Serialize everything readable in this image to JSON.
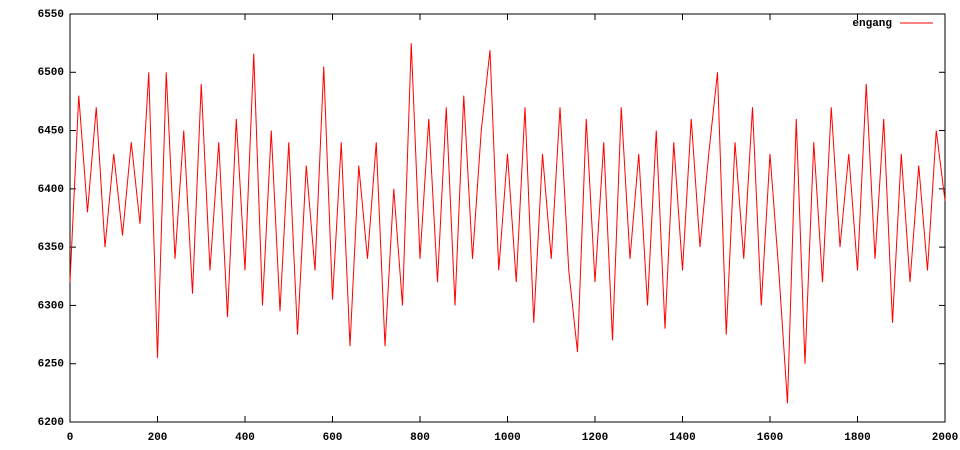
{
  "chart_data": {
    "type": "line",
    "x": [
      0,
      20,
      40,
      60,
      80,
      100,
      120,
      140,
      160,
      180,
      200,
      220,
      240,
      260,
      280,
      300,
      320,
      340,
      360,
      380,
      400,
      420,
      440,
      460,
      480,
      500,
      520,
      540,
      560,
      580,
      600,
      620,
      640,
      660,
      680,
      700,
      720,
      740,
      760,
      780,
      800,
      820,
      840,
      860,
      880,
      900,
      920,
      940,
      960,
      980,
      1000,
      1020,
      1040,
      1060,
      1080,
      1100,
      1120,
      1140,
      1160,
      1180,
      1200,
      1220,
      1240,
      1260,
      1280,
      1300,
      1320,
      1340,
      1360,
      1380,
      1400,
      1420,
      1440,
      1460,
      1480,
      1500,
      1520,
      1540,
      1560,
      1580,
      1600,
      1620,
      1640,
      1660,
      1680,
      1700,
      1720,
      1740,
      1760,
      1780,
      1800,
      1820,
      1840,
      1860,
      1880,
      1900,
      1920,
      1940,
      1960,
      1980,
      2000
    ],
    "series": [
      {
        "name": "engang",
        "color": "#ff0000",
        "values": [
          6320,
          6480,
          6380,
          6470,
          6350,
          6430,
          6360,
          6440,
          6370,
          6500,
          6255,
          6500,
          6340,
          6450,
          6310,
          6490,
          6330,
          6440,
          6290,
          6460,
          6330,
          6516,
          6300,
          6450,
          6295,
          6440,
          6275,
          6420,
          6330,
          6505,
          6305,
          6440,
          6265,
          6420,
          6340,
          6440,
          6265,
          6400,
          6300,
          6525,
          6340,
          6460,
          6320,
          6470,
          6300,
          6480,
          6340,
          6450,
          6519,
          6330,
          6430,
          6320,
          6470,
          6285,
          6430,
          6340,
          6470,
          6330,
          6260,
          6460,
          6320,
          6440,
          6270,
          6470,
          6340,
          6430,
          6300,
          6450,
          6280,
          6440,
          6330,
          6460,
          6350,
          6430,
          6500,
          6275,
          6440,
          6340,
          6470,
          6300,
          6430,
          6330,
          6216,
          6460,
          6250,
          6440,
          6320,
          6470,
          6350,
          6430,
          6330,
          6490,
          6340,
          6460,
          6285,
          6430,
          6320,
          6420,
          6330,
          6450,
          6390
        ]
      }
    ],
    "xlim": [
      0,
      2000
    ],
    "xticks": [
      0,
      200,
      400,
      600,
      800,
      1000,
      1200,
      1400,
      1600,
      1800,
      2000
    ],
    "ylim": [
      6200,
      6550
    ],
    "yticks": [
      6200,
      6250,
      6300,
      6350,
      6400,
      6450,
      6500,
      6550
    ],
    "legend": "top-right"
  }
}
